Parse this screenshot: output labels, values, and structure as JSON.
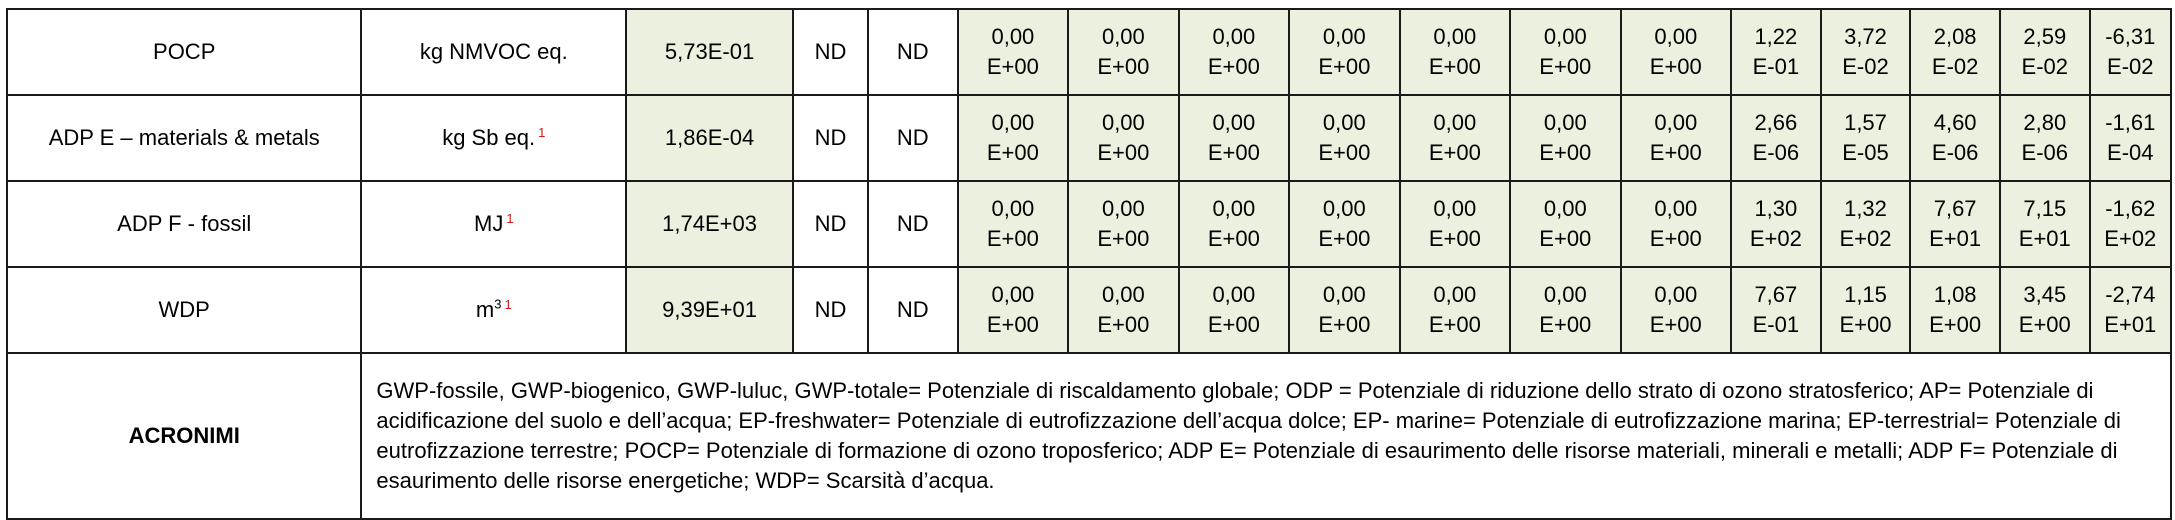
{
  "rows": [
    {
      "indicator": "POCP",
      "unit": "kg NMVOC eq.",
      "unit_sup": "",
      "note": "",
      "a1a3": "5,73E-01",
      "nd1": "ND",
      "nd2": "ND",
      "vals": [
        [
          "0,00",
          "E+00"
        ],
        [
          "0,00",
          "E+00"
        ],
        [
          "0,00",
          "E+00"
        ],
        [
          "0,00",
          "E+00"
        ],
        [
          "0,00",
          "E+00"
        ],
        [
          "0,00",
          "E+00"
        ],
        [
          "0,00",
          "E+00"
        ],
        [
          "1,22",
          "E-01"
        ],
        [
          "3,72",
          "E-02"
        ],
        [
          "2,08",
          "E-02"
        ],
        [
          "2,59",
          "E-02"
        ],
        [
          "-6,31",
          "E-02"
        ]
      ]
    },
    {
      "indicator": "ADP E – materials & metals",
      "unit": "kg Sb eq.",
      "unit_sup": "",
      "note": "1",
      "a1a3": "1,86E-04",
      "nd1": "ND",
      "nd2": "ND",
      "vals": [
        [
          "0,00",
          "E+00"
        ],
        [
          "0,00",
          "E+00"
        ],
        [
          "0,00",
          "E+00"
        ],
        [
          "0,00",
          "E+00"
        ],
        [
          "0,00",
          "E+00"
        ],
        [
          "0,00",
          "E+00"
        ],
        [
          "0,00",
          "E+00"
        ],
        [
          "2,66",
          "E-06"
        ],
        [
          "1,57",
          "E-05"
        ],
        [
          "4,60",
          "E-06"
        ],
        [
          "2,80",
          "E-06"
        ],
        [
          "-1,61",
          "E-04"
        ]
      ]
    },
    {
      "indicator": "ADP F - fossil",
      "unit": "MJ",
      "unit_sup": "",
      "note": "1",
      "a1a3": "1,74E+03",
      "nd1": "ND",
      "nd2": "ND",
      "vals": [
        [
          "0,00",
          "E+00"
        ],
        [
          "0,00",
          "E+00"
        ],
        [
          "0,00",
          "E+00"
        ],
        [
          "0,00",
          "E+00"
        ],
        [
          "0,00",
          "E+00"
        ],
        [
          "0,00",
          "E+00"
        ],
        [
          "0,00",
          "E+00"
        ],
        [
          "1,30",
          "E+02"
        ],
        [
          "1,32",
          "E+02"
        ],
        [
          "7,67",
          "E+01"
        ],
        [
          "7,15",
          "E+01"
        ],
        [
          "-1,62",
          "E+02"
        ]
      ]
    },
    {
      "indicator": "WDP",
      "unit": "m",
      "unit_sup": "3",
      "note": "1",
      "a1a3": "9,39E+01",
      "nd1": "ND",
      "nd2": "ND",
      "vals": [
        [
          "0,00",
          "E+00"
        ],
        [
          "0,00",
          "E+00"
        ],
        [
          "0,00",
          "E+00"
        ],
        [
          "0,00",
          "E+00"
        ],
        [
          "0,00",
          "E+00"
        ],
        [
          "0,00",
          "E+00"
        ],
        [
          "0,00",
          "E+00"
        ],
        [
          "7,67",
          "E-01"
        ],
        [
          "1,15",
          "E+00"
        ],
        [
          "1,08",
          "E+00"
        ],
        [
          "3,45",
          "E+00"
        ],
        [
          "-2,74",
          "E+01"
        ]
      ]
    }
  ],
  "acronyms": {
    "label": "ACRONIMI",
    "text": "GWP-fossile, GWP-biogenico, GWP-luluc, GWP-totale= Potenziale di riscaldamento globale; ODP = Potenziale di riduzione dello strato di ozono stratosferico; AP= Potenziale di acidificazione del suolo e dell’acqua; EP-freshwater= Potenziale di eutrofizzazione dell’acqua dolce; EP- marine= Potenziale di eutrofizzazione marina; EP-terrestrial= Potenziale di eutrofizzazione terrestre; POCP= Potenziale di formazione di ozono troposferico;  ADP E= Potenziale di esaurimento delle risorse materiali, minerali e metalli;  ADP F= Potenziale di esaurimento delle risorse energetiche; WDP= Scarsità d’acqua."
  },
  "colors": {
    "shaded_cell": "#ebf0df",
    "border": "#1a1a1a",
    "footnote_red": "#d01818"
  }
}
